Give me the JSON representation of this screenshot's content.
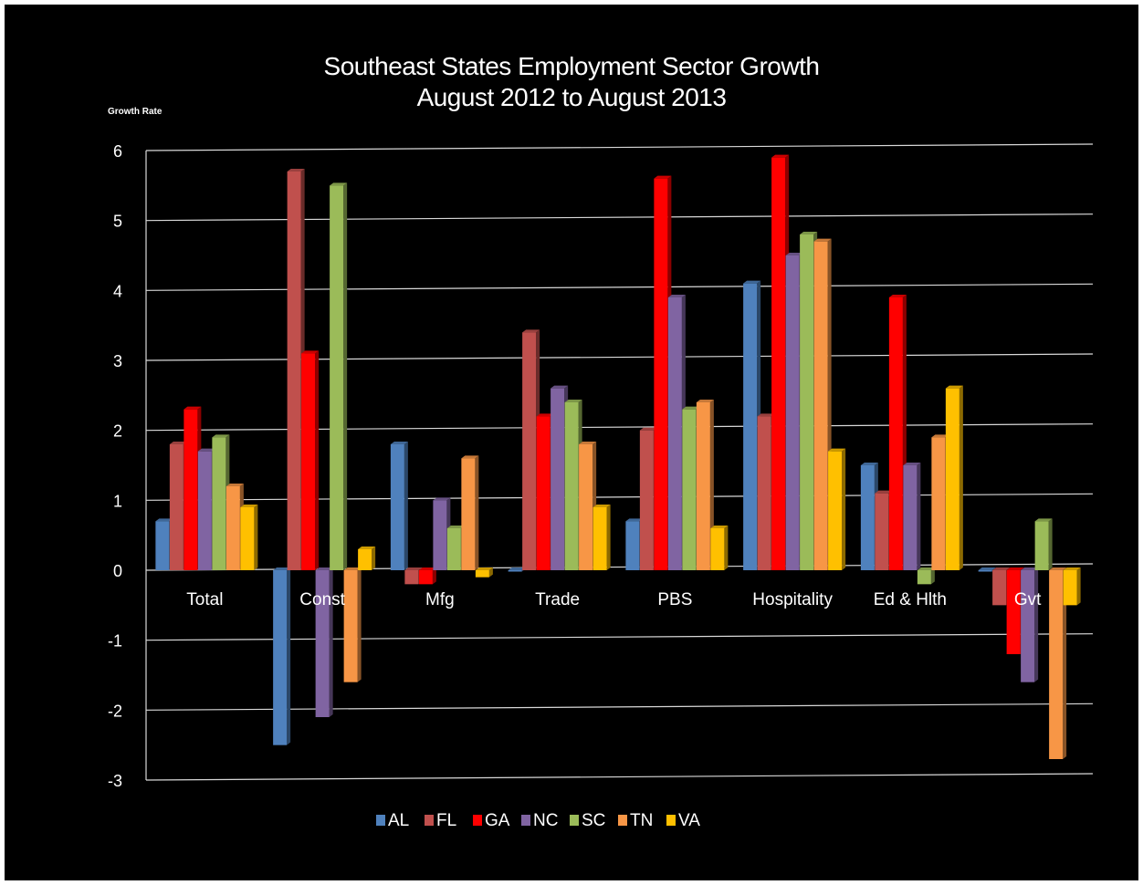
{
  "chart_data": {
    "type": "bar",
    "title": [
      "Southeast States Employment Sector Growth",
      "August 2012 to August 2013"
    ],
    "ylabel": "Growth Rate",
    "xlabel": "",
    "ylim": [
      -3,
      6
    ],
    "yticks": [
      "6",
      "5",
      "4",
      "3",
      "2",
      "1",
      "0",
      "-1",
      "-2",
      "-3"
    ],
    "ytick_values": [
      6,
      5,
      4,
      3,
      2,
      1,
      0,
      -1,
      -2,
      -3
    ],
    "grid": true,
    "legend_position": "bottom",
    "categories": [
      "Total",
      "Const",
      "Mfg",
      "Trade",
      "PBS",
      "Hospitality",
      "Ed & Hlth",
      "Gvt"
    ],
    "series": [
      {
        "name": "AL",
        "color": "#4F81BD",
        "values": [
          0.7,
          -2.5,
          1.8,
          0.0,
          0.7,
          4.1,
          1.5,
          0.0
        ]
      },
      {
        "name": "FL",
        "color": "#C0504D",
        "values": [
          1.8,
          5.7,
          -0.2,
          3.4,
          2.0,
          2.2,
          1.1,
          -0.5
        ]
      },
      {
        "name": "GA",
        "color": "#FF0000",
        "values": [
          2.3,
          3.1,
          -0.2,
          2.2,
          5.6,
          5.9,
          3.9,
          -1.2
        ]
      },
      {
        "name": "NC",
        "color": "#8064A2",
        "values": [
          1.7,
          -2.1,
          1.0,
          2.6,
          3.9,
          4.5,
          1.5,
          -1.6
        ]
      },
      {
        "name": "SC",
        "color": "#9BBB59",
        "values": [
          1.9,
          5.5,
          0.6,
          2.4,
          2.3,
          4.8,
          -0.2,
          0.7
        ]
      },
      {
        "name": "TN",
        "color": "#F79646",
        "values": [
          1.2,
          -1.6,
          1.6,
          1.8,
          2.4,
          4.7,
          1.9,
          -2.7
        ]
      },
      {
        "name": "VA",
        "color": "#FFC000",
        "values": [
          0.9,
          0.3,
          -0.1,
          0.9,
          0.6,
          1.7,
          2.6,
          -0.5
        ]
      }
    ]
  }
}
